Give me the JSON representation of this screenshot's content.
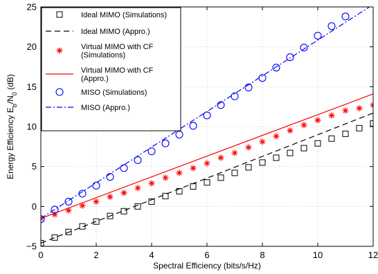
{
  "chart_data": {
    "type": "line",
    "xlabel": "Spectral Efficiency (bits/s/Hz)",
    "ylabel": {
      "main": "Energy Efficiency  E",
      "sub1": "b",
      "mid": "/N",
      "sub2": "0",
      "tail": " (dB)"
    },
    "xlim": [
      0,
      12
    ],
    "ylim": [
      -5,
      25
    ],
    "xticks": [
      0,
      2,
      4,
      6,
      8,
      10,
      12
    ],
    "yticks": [
      -5,
      0,
      5,
      10,
      15,
      20,
      25
    ],
    "xtick_labels": [
      "0",
      "2",
      "4",
      "6",
      "8",
      "10",
      "12"
    ],
    "ytick_labels": [
      "−5",
      "0",
      "5",
      "10",
      "15",
      "20",
      "25"
    ],
    "grid": true,
    "legend_position": "top-left",
    "series": [
      {
        "name": "Ideal MIMO (Simulations)",
        "style": "marker",
        "marker": "square",
        "color": "#000000",
        "x": [
          0,
          0.5,
          1,
          1.5,
          2,
          2.5,
          3,
          3.5,
          4,
          4.5,
          5,
          5.5,
          6,
          6.5,
          7,
          7.5,
          8,
          8.5,
          9,
          9.5,
          10,
          10.5,
          11,
          11.5,
          12
        ],
        "y": [
          -4.6,
          -3.9,
          -3.2,
          -2.5,
          -1.9,
          -1.2,
          -0.6,
          0.0,
          0.6,
          1.3,
          1.9,
          2.5,
          3.0,
          3.6,
          4.2,
          4.9,
          5.5,
          6.1,
          6.7,
          7.3,
          7.9,
          8.5,
          9.1,
          9.8,
          10.4
        ]
      },
      {
        "name": "Ideal MIMO (Appro.)",
        "style": "line",
        "dash": "8,5",
        "color": "#000000",
        "x": [
          0,
          12
        ],
        "y": [
          -4.6,
          11.7
        ]
      },
      {
        "name_lines": [
          "Virtual MIMO with CF",
          "(Simulations)"
        ],
        "style": "marker",
        "marker": "asterisk",
        "color": "#ff0000",
        "x": [
          0,
          0.5,
          1,
          1.5,
          2,
          2.5,
          3,
          3.5,
          4,
          4.5,
          5,
          5.5,
          6,
          6.5,
          7,
          7.5,
          8,
          8.5,
          9,
          9.5,
          10,
          10.5,
          11,
          11.5,
          12
        ],
        "y": [
          -1.5,
          -1.0,
          -0.5,
          0.1,
          0.6,
          1.2,
          1.7,
          2.3,
          2.9,
          3.6,
          4.2,
          4.8,
          5.4,
          6.1,
          6.7,
          7.4,
          8.1,
          8.8,
          9.5,
          10.2,
          10.8,
          11.4,
          12.0,
          12.3,
          12.7
        ]
      },
      {
        "name_lines": [
          "Virtual MIMO with CF",
          "(Appro.)"
        ],
        "style": "line",
        "dash": "",
        "color": "#ff0000",
        "x": [
          0,
          12
        ],
        "y": [
          -1.5,
          14.1
        ]
      },
      {
        "name": "MISO (Simulations)",
        "style": "marker",
        "marker": "circle",
        "color": "#0000ff",
        "x": [
          0,
          0.5,
          1,
          1.5,
          2,
          2.5,
          3,
          3.5,
          4,
          4.5,
          5,
          5.5,
          6,
          6.5,
          7,
          7.5,
          8,
          8.5,
          9,
          9.5,
          10,
          10.5,
          11
        ],
        "y": [
          -1.6,
          -0.4,
          0.6,
          1.6,
          2.6,
          3.7,
          4.8,
          5.8,
          6.9,
          7.9,
          9.0,
          10.1,
          11.4,
          12.7,
          13.8,
          14.9,
          16.1,
          17.4,
          18.7,
          19.9,
          21.4,
          22.6,
          23.8
        ]
      },
      {
        "name": "MISO (Appro.)",
        "style": "line",
        "dash": "8,3,2,3",
        "color": "#0000ff",
        "x": [
          0,
          12
        ],
        "y": [
          -1.5,
          25.3
        ]
      }
    ]
  }
}
